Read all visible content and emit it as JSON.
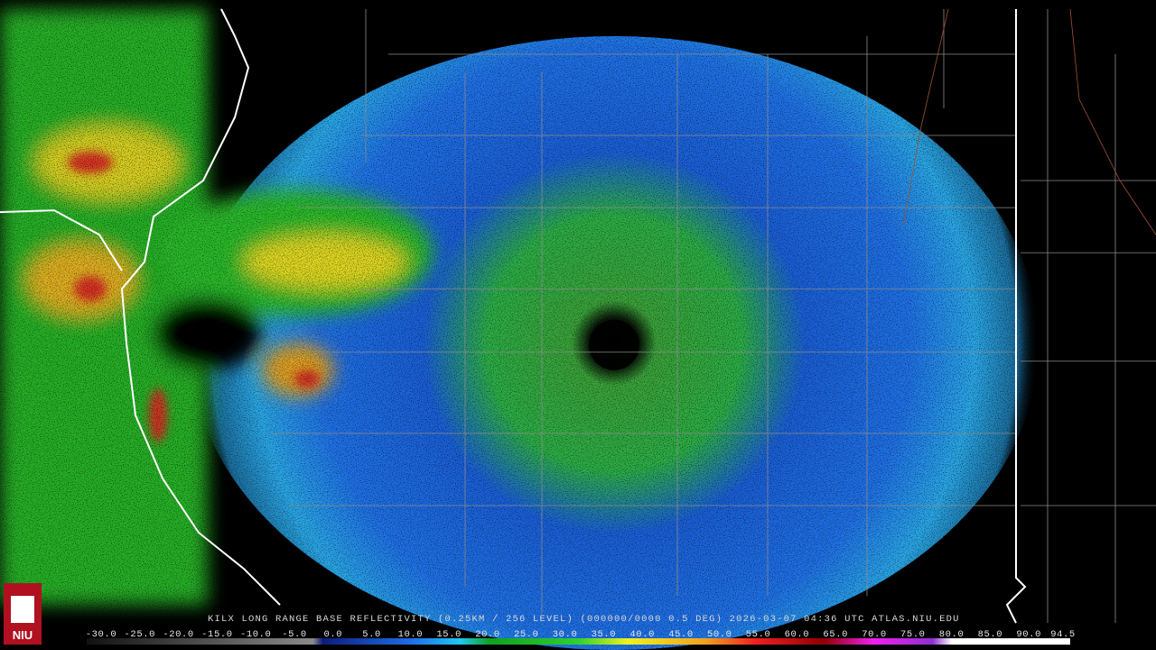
{
  "caption": "KILX LONG RANGE BASE REFLECTIVITY (0.25KM / 256 LEVEL) (000000/0000 0.5 DEG) 2026-03-07 04:36 UTC  ATLAS.NIU.EDU",
  "logo": "NIU",
  "scale_labels": [
    "-30.0",
    "-25.0",
    "-20.0",
    "-15.0",
    "-10.0",
    "-5.0",
    "0.0",
    "5.0",
    "10.0",
    "15.0",
    "20.0",
    "25.0",
    "30.0",
    "35.0",
    "40.0",
    "45.0",
    "50.0",
    "55.0",
    "60.0",
    "65.0",
    "70.0",
    "75.0",
    "80.0",
    "85.0",
    "90.0",
    "94.5"
  ]
}
